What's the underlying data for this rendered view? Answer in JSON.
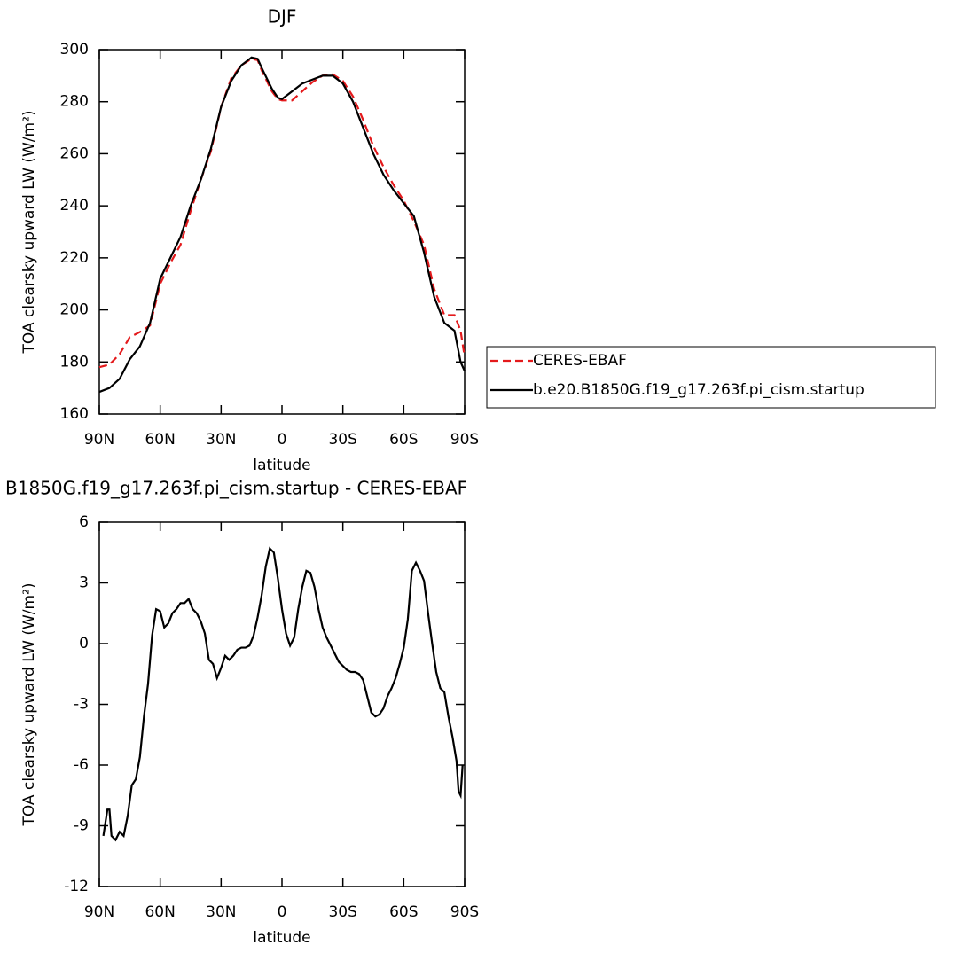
{
  "chart_data": [
    {
      "type": "line",
      "title": "DJF",
      "xlabel": "latitude",
      "ylabel": "TOA clearsky upward LW (W/m²)",
      "x": [
        90,
        85,
        80,
        75,
        70,
        65,
        60,
        55,
        50,
        45,
        40,
        35,
        30,
        25,
        20,
        15,
        12,
        10,
        5,
        2,
        0,
        -5,
        -10,
        -15,
        -20,
        -25,
        -30,
        -35,
        -40,
        -45,
        -50,
        -55,
        -60,
        -65,
        -70,
        -75,
        -80,
        -85,
        -88,
        -90
      ],
      "series": [
        {
          "name": "CERES-EBAF",
          "color": "#e41a1c",
          "dash": true,
          "values": [
            178,
            179,
            183,
            189.5,
            191.5,
            194,
            210,
            218,
            225,
            238,
            250,
            261,
            278,
            289,
            294,
            296.5,
            296,
            292,
            284,
            281,
            280.5,
            280.5,
            284,
            287.5,
            290,
            290.5,
            288,
            282,
            273,
            263,
            255,
            248,
            242,
            234,
            225,
            208,
            198,
            198,
            192,
            182
          ]
        },
        {
          "name": "b.e20.B1850G.f19_g17.263f.pi_cism.startup",
          "color": "#000000",
          "dash": false,
          "values": [
            168.5,
            170,
            173.5,
            181,
            186,
            195,
            212,
            220,
            228,
            240,
            250,
            262,
            278,
            288,
            294,
            297,
            296.5,
            293,
            285,
            281.5,
            281,
            284,
            287,
            288.5,
            290,
            290,
            287,
            280,
            270,
            260,
            252,
            246,
            241,
            236,
            222,
            205,
            195,
            192,
            180,
            176.5
          ]
        }
      ],
      "xlim": [
        90,
        -90
      ],
      "xticks": [
        {
          "value": 90,
          "label": "90N"
        },
        {
          "value": 60,
          "label": "60N"
        },
        {
          "value": 30,
          "label": "30N"
        },
        0,
        {
          "value": -30,
          "label": "30S"
        },
        {
          "value": -60,
          "label": "60S"
        },
        {
          "value": -90,
          "label": "90S"
        }
      ],
      "ylim": [
        160,
        300
      ],
      "yticks": [
        160,
        180,
        200,
        220,
        240,
        260,
        280,
        300
      ]
    },
    {
      "type": "line",
      "title": "B1850G.f19_g17.263f.pi_cism.startup - CERES-EBAF",
      "xlabel": "latitude",
      "ylabel": "TOA clearsky upward LW (W/m²)",
      "x": [
        88,
        86,
        85,
        84,
        82,
        80,
        78,
        76,
        74,
        72,
        70,
        68,
        66,
        64,
        62,
        60,
        58,
        56,
        54,
        52,
        50,
        48,
        46,
        44,
        42,
        40,
        38,
        36,
        34,
        32,
        30,
        28,
        26,
        24,
        22,
        20,
        18,
        16,
        14,
        12,
        10,
        8,
        6,
        4,
        2,
        0,
        -2,
        -4,
        -6,
        -8,
        -10,
        -12,
        -14,
        -16,
        -18,
        -20,
        -22,
        -24,
        -26,
        -28,
        -30,
        -32,
        -34,
        -36,
        -38,
        -40,
        -42,
        -44,
        -46,
        -48,
        -50,
        -52,
        -54,
        -56,
        -58,
        -60,
        -62,
        -64,
        -66,
        -68,
        -70,
        -72,
        -74,
        -76,
        -78,
        -80,
        -82,
        -84,
        -86,
        -87,
        -88,
        -89
      ],
      "series": [
        {
          "color": "#000000",
          "dash": false,
          "values": [
            -9.5,
            -8.2,
            -8.2,
            -9.5,
            -9.7,
            -9.3,
            -9.5,
            -8.5,
            -7,
            -6.7,
            -5.6,
            -3.6,
            -2,
            0.4,
            1.7,
            1.6,
            0.8,
            1.0,
            1.5,
            1.7,
            2.0,
            2.0,
            2.2,
            1.7,
            1.5,
            1.1,
            0.5,
            -0.8,
            -1.0,
            -1.7,
            -1.2,
            -0.6,
            -0.8,
            -0.6,
            -0.3,
            -0.2,
            -0.2,
            -0.1,
            0.4,
            1.3,
            2.4,
            3.8,
            4.7,
            4.5,
            3.2,
            1.7,
            0.5,
            -0.1,
            0.3,
            1.7,
            2.8,
            3.6,
            3.5,
            2.8,
            1.7,
            0.8,
            0.3,
            -0.1,
            -0.5,
            -0.9,
            -1.1,
            -1.3,
            -1.4,
            -1.4,
            -1.5,
            -1.8,
            -2.6,
            -3.4,
            -3.6,
            -3.5,
            -3.2,
            -2.6,
            -2.2,
            -1.7,
            -1.0,
            -0.2,
            1.2,
            3.6,
            4.0,
            3.6,
            3.1,
            1.5,
            0.0,
            -1.4,
            -2.2,
            -2.4,
            -3.6,
            -4.6,
            -5.8,
            -7.3,
            -7.5,
            -6.0
          ]
        }
      ],
      "xlim": [
        90,
        -90
      ],
      "xticks": [
        {
          "value": 90,
          "label": "90N"
        },
        {
          "value": 60,
          "label": "60N"
        },
        {
          "value": 30,
          "label": "30N"
        },
        0,
        {
          "value": -30,
          "label": "30S"
        },
        {
          "value": -60,
          "label": "60S"
        },
        {
          "value": -90,
          "label": "90S"
        }
      ],
      "ylim": [
        -12,
        6
      ],
      "yticks": [
        -12,
        -9,
        -6,
        -3,
        0,
        3,
        6
      ]
    }
  ]
}
